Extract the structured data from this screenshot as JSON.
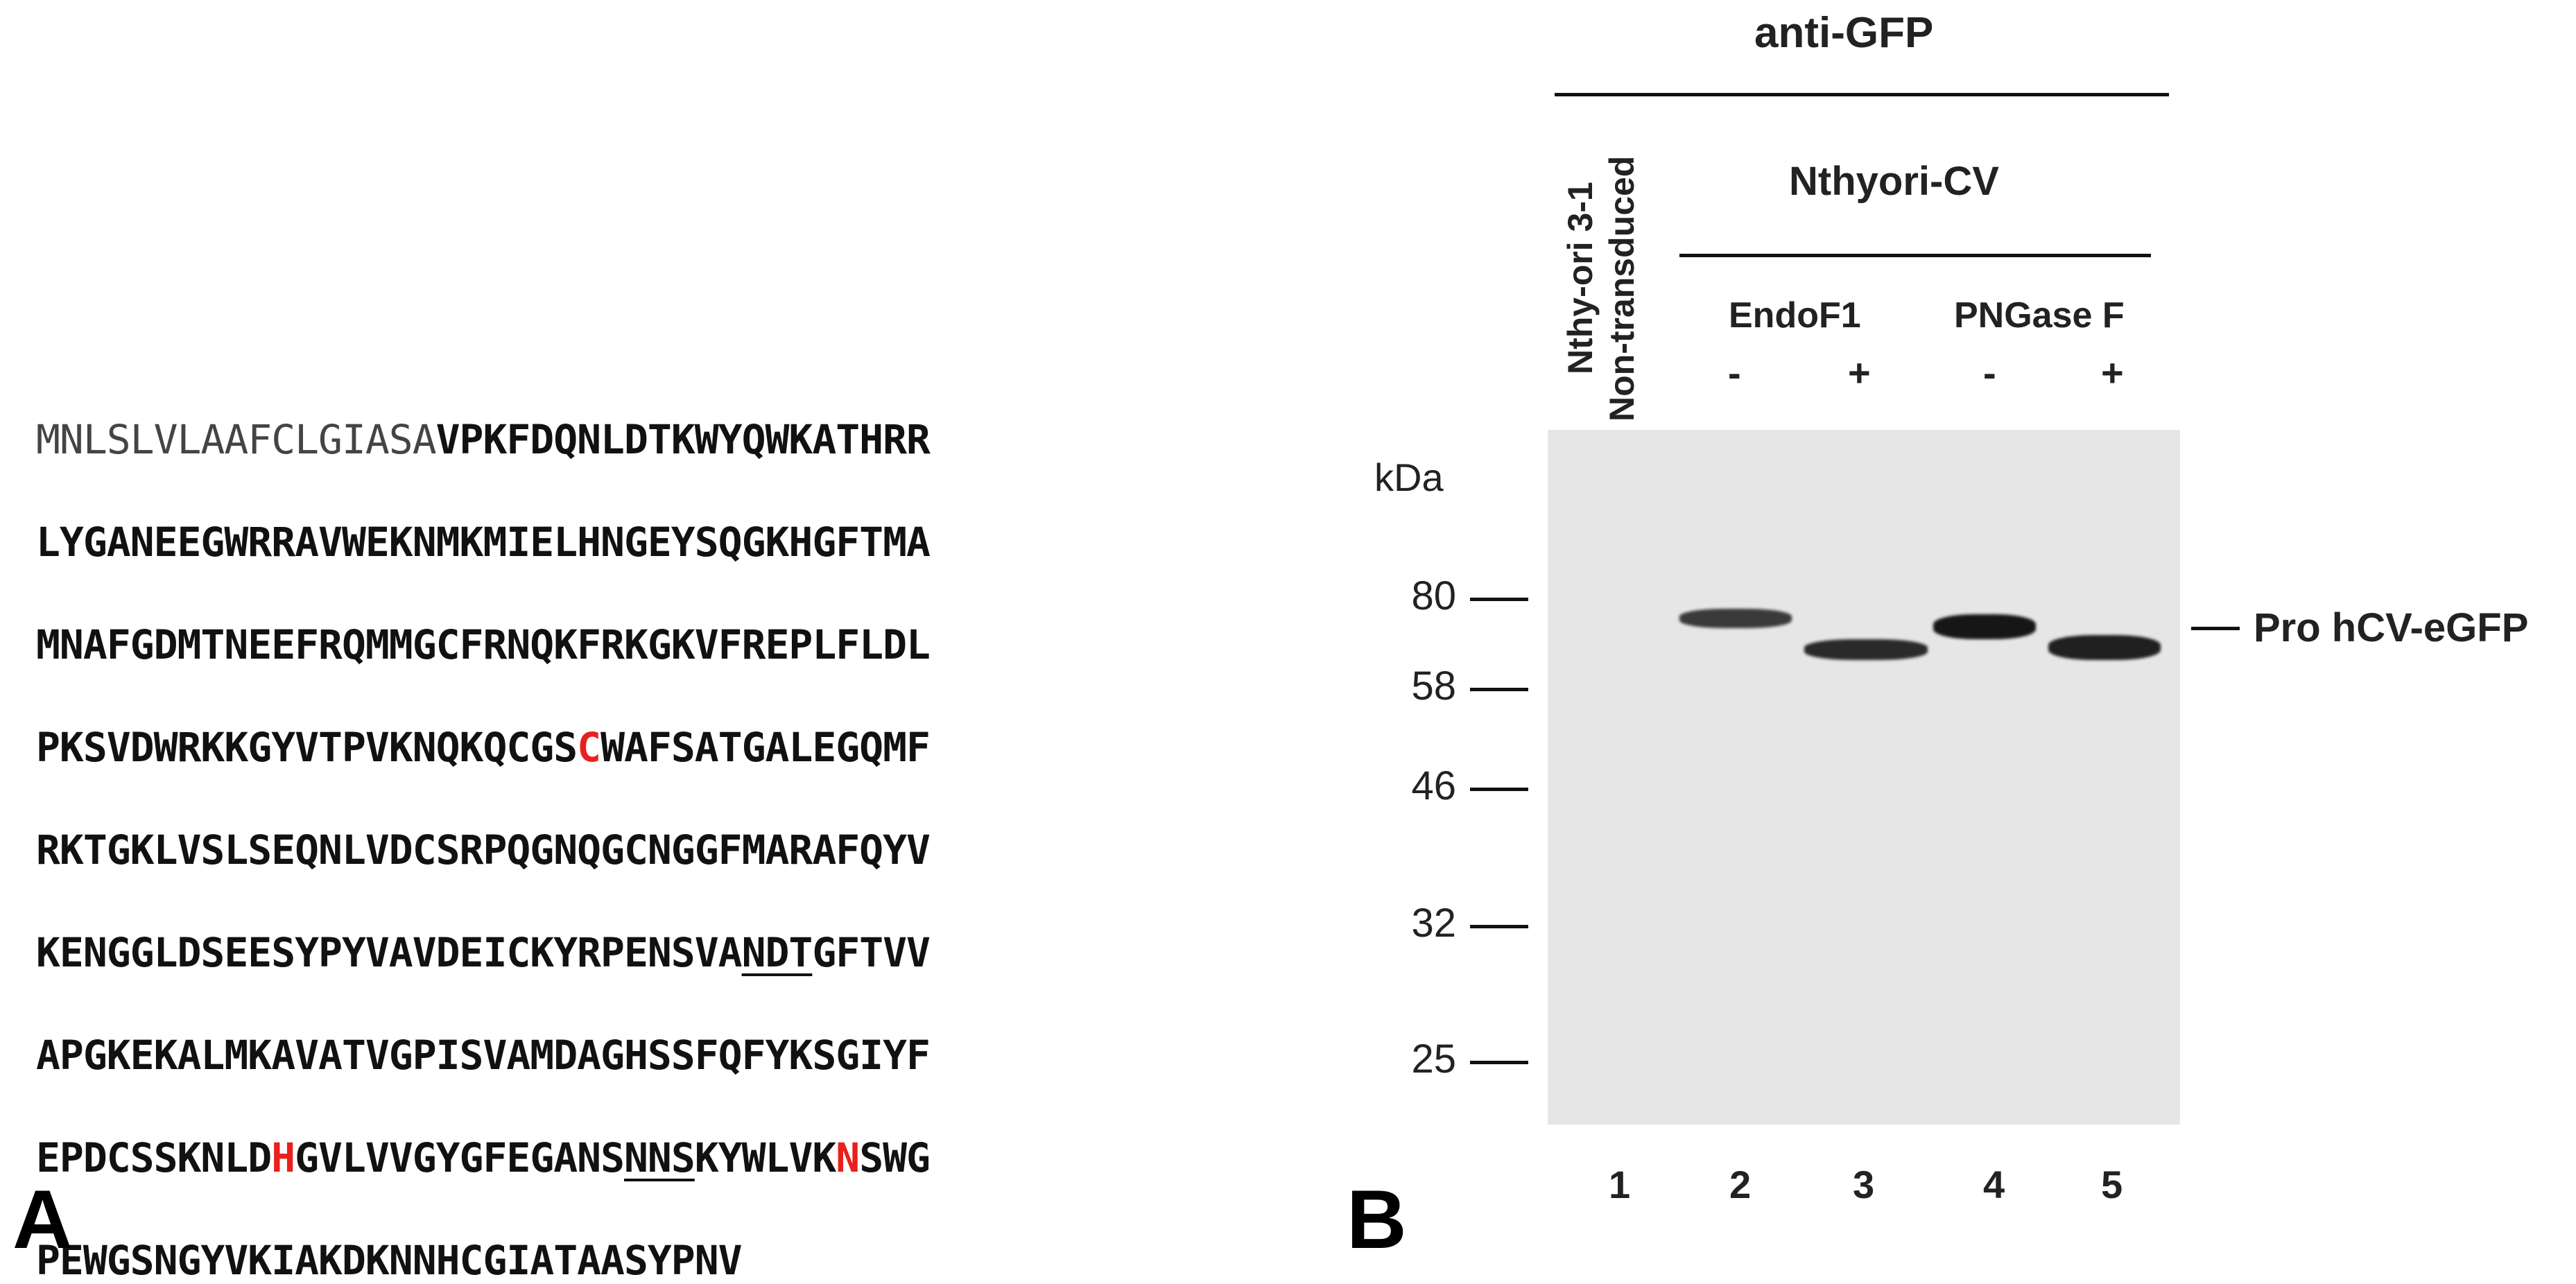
{
  "panel_a": {
    "letter": "A",
    "sequence_lines": [
      [
        {
          "t": "MNLSLVLAAFCLGIASA",
          "c": "signal"
        },
        {
          "t": "VPKFDQNLDTKWYQWKATHRR",
          "c": ""
        }
      ],
      [
        {
          "t": "LYGANEEGWRRAVWEKNMKMIELHNGEYSQGKHGFTMA",
          "c": ""
        }
      ],
      [
        {
          "t": "MNAFGDMTNEEFRQMMGCFRNQKFRKGKVFREPLFLDL",
          "c": ""
        }
      ],
      [
        {
          "t": "PKSVDWRKKGYVTPVKNQKQCGS",
          "c": ""
        },
        {
          "t": "C",
          "c": "red"
        },
        {
          "t": "WAFSATGALEGQMF",
          "c": ""
        }
      ],
      [
        {
          "t": "RKTGKLVSLSEQNLVDCSRPQGNQGCNGGFMARAFQYV",
          "c": ""
        }
      ],
      [
        {
          "t": "KENGGLDSEESYPYVAVDEICKYRPENSVA",
          "c": ""
        },
        {
          "t": "NDT",
          "c": "ul"
        },
        {
          "t": "GFTVV",
          "c": ""
        }
      ],
      [
        {
          "t": "APGKEKALMKAVATVGPISVAMDAGHSSFQFYKSGIYF",
          "c": ""
        }
      ],
      [
        {
          "t": "EPDCSSKNLD",
          "c": ""
        },
        {
          "t": "H",
          "c": "red"
        },
        {
          "t": "GVLVVGYGFEGANS",
          "c": ""
        },
        {
          "t": "NNS",
          "c": "ul"
        },
        {
          "t": "KYWLVK",
          "c": ""
        },
        {
          "t": "N",
          "c": "red"
        },
        {
          "t": "SWG",
          "c": ""
        }
      ],
      [
        {
          "t": "PEWGSNGYVKIAKDKNNHCGIATAASYPNV",
          "c": ""
        }
      ]
    ]
  },
  "panel_b": {
    "letter": "B",
    "antibody": "anti-GFP",
    "control_lane_label_1": "Nthy-ori 3-1",
    "control_lane_label_2": "Non-transduced",
    "group_label": "Nthyori-CV",
    "enzyme_1": "EndoF1",
    "enzyme_2": "PNGase F",
    "treatment_signs": [
      "-",
      "+",
      "-",
      "+"
    ],
    "kda_label": "kDa",
    "markers": [
      "80",
      "58",
      "46",
      "32",
      "25"
    ],
    "band_label": "Pro hCV-eGFP",
    "lane_numbers": [
      "1",
      "2",
      "3",
      "4",
      "5"
    ],
    "colors": {
      "red_residue": "#e8201e",
      "blot_background": "#e6e6e6",
      "band": "#1e1e1e"
    }
  }
}
